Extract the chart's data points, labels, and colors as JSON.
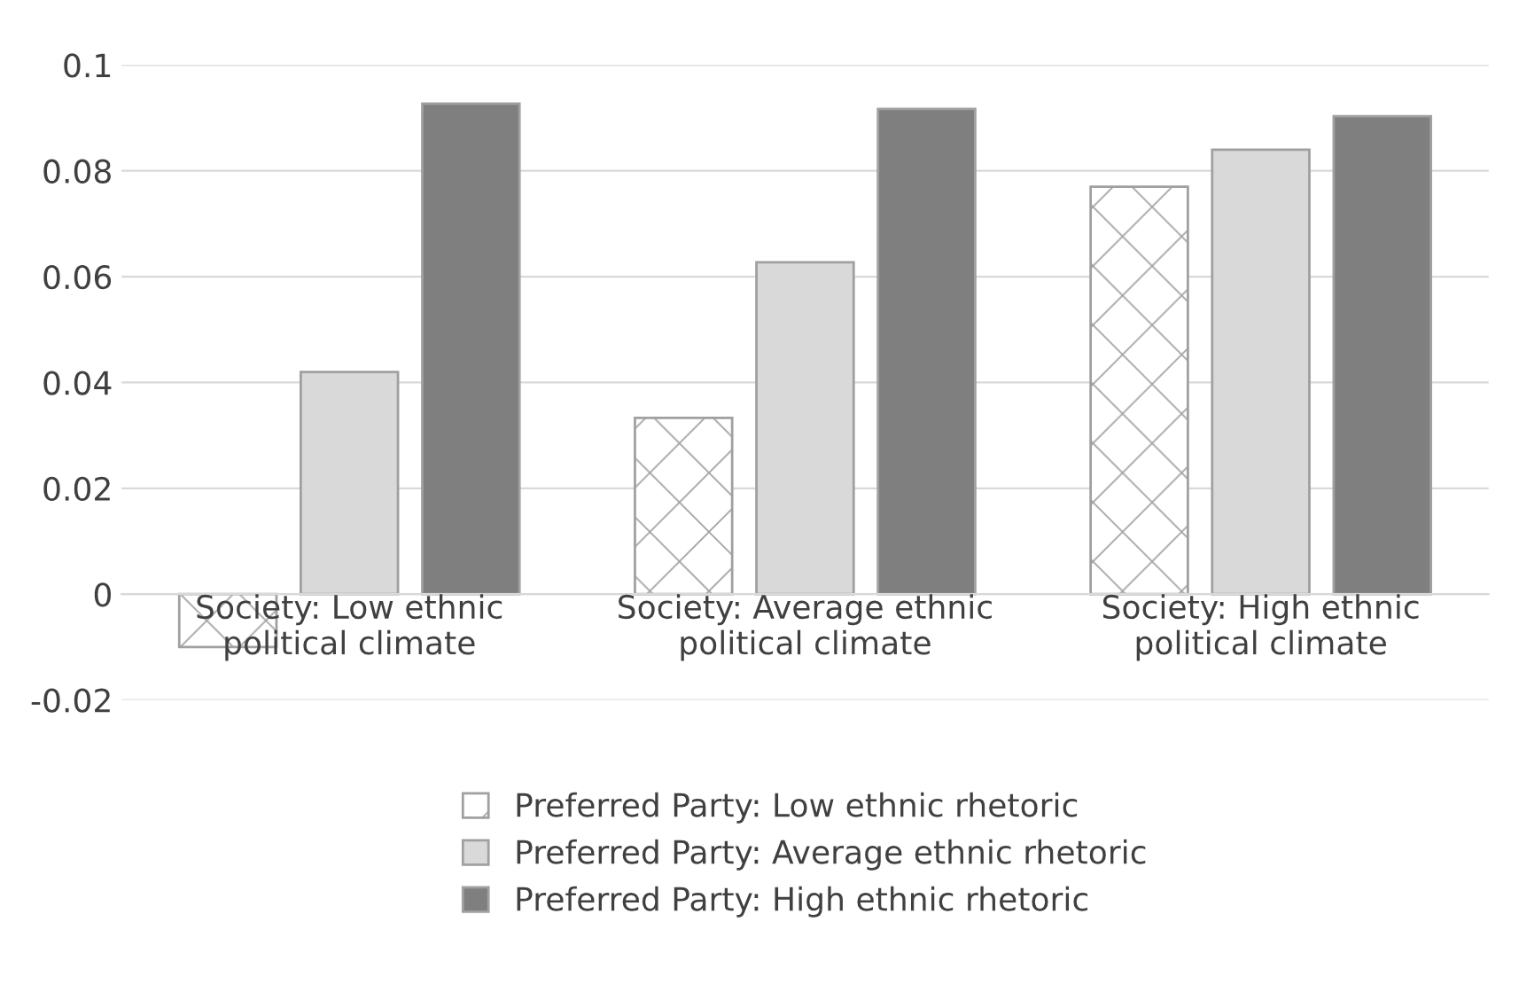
{
  "chart_data": {
    "type": "bar",
    "categories": [
      "Society: Low ethnic\npolitical climate",
      "Society: Average ethnic\npolitical climate",
      "Society: High ethnic\npolitical climate"
    ],
    "series": [
      {
        "name": "Preferred Party: Low ethnic rhetoric",
        "color": "#a0a0a0",
        "values": [
          -0.01,
          0.0333,
          0.077
        ]
      },
      {
        "name": "Preferred Party: Average ethnic rhetoric",
        "color": "#d9d9d9",
        "values": [
          0.042,
          0.0627,
          0.084
        ]
      },
      {
        "name": "Preferred Party: High ethnic rhetoric",
        "color": "#7f7f7f",
        "values": [
          0.0927,
          0.0917,
          0.0903
        ]
      }
    ],
    "ylim": [
      -0.02,
      0.1
    ],
    "yticks": [
      {
        "value": -0.02,
        "label": "-0.02"
      },
      {
        "value": 0,
        "label": "0"
      },
      {
        "value": 0.02,
        "label": "0.02"
      },
      {
        "value": 0.04,
        "label": "0.04"
      },
      {
        "value": 0.06,
        "label": "0.06"
      },
      {
        "value": 0.08,
        "label": "0.08"
      },
      {
        "value": 0.1,
        "label": "0.1"
      }
    ],
    "grid": "y",
    "legend": "bottom"
  }
}
